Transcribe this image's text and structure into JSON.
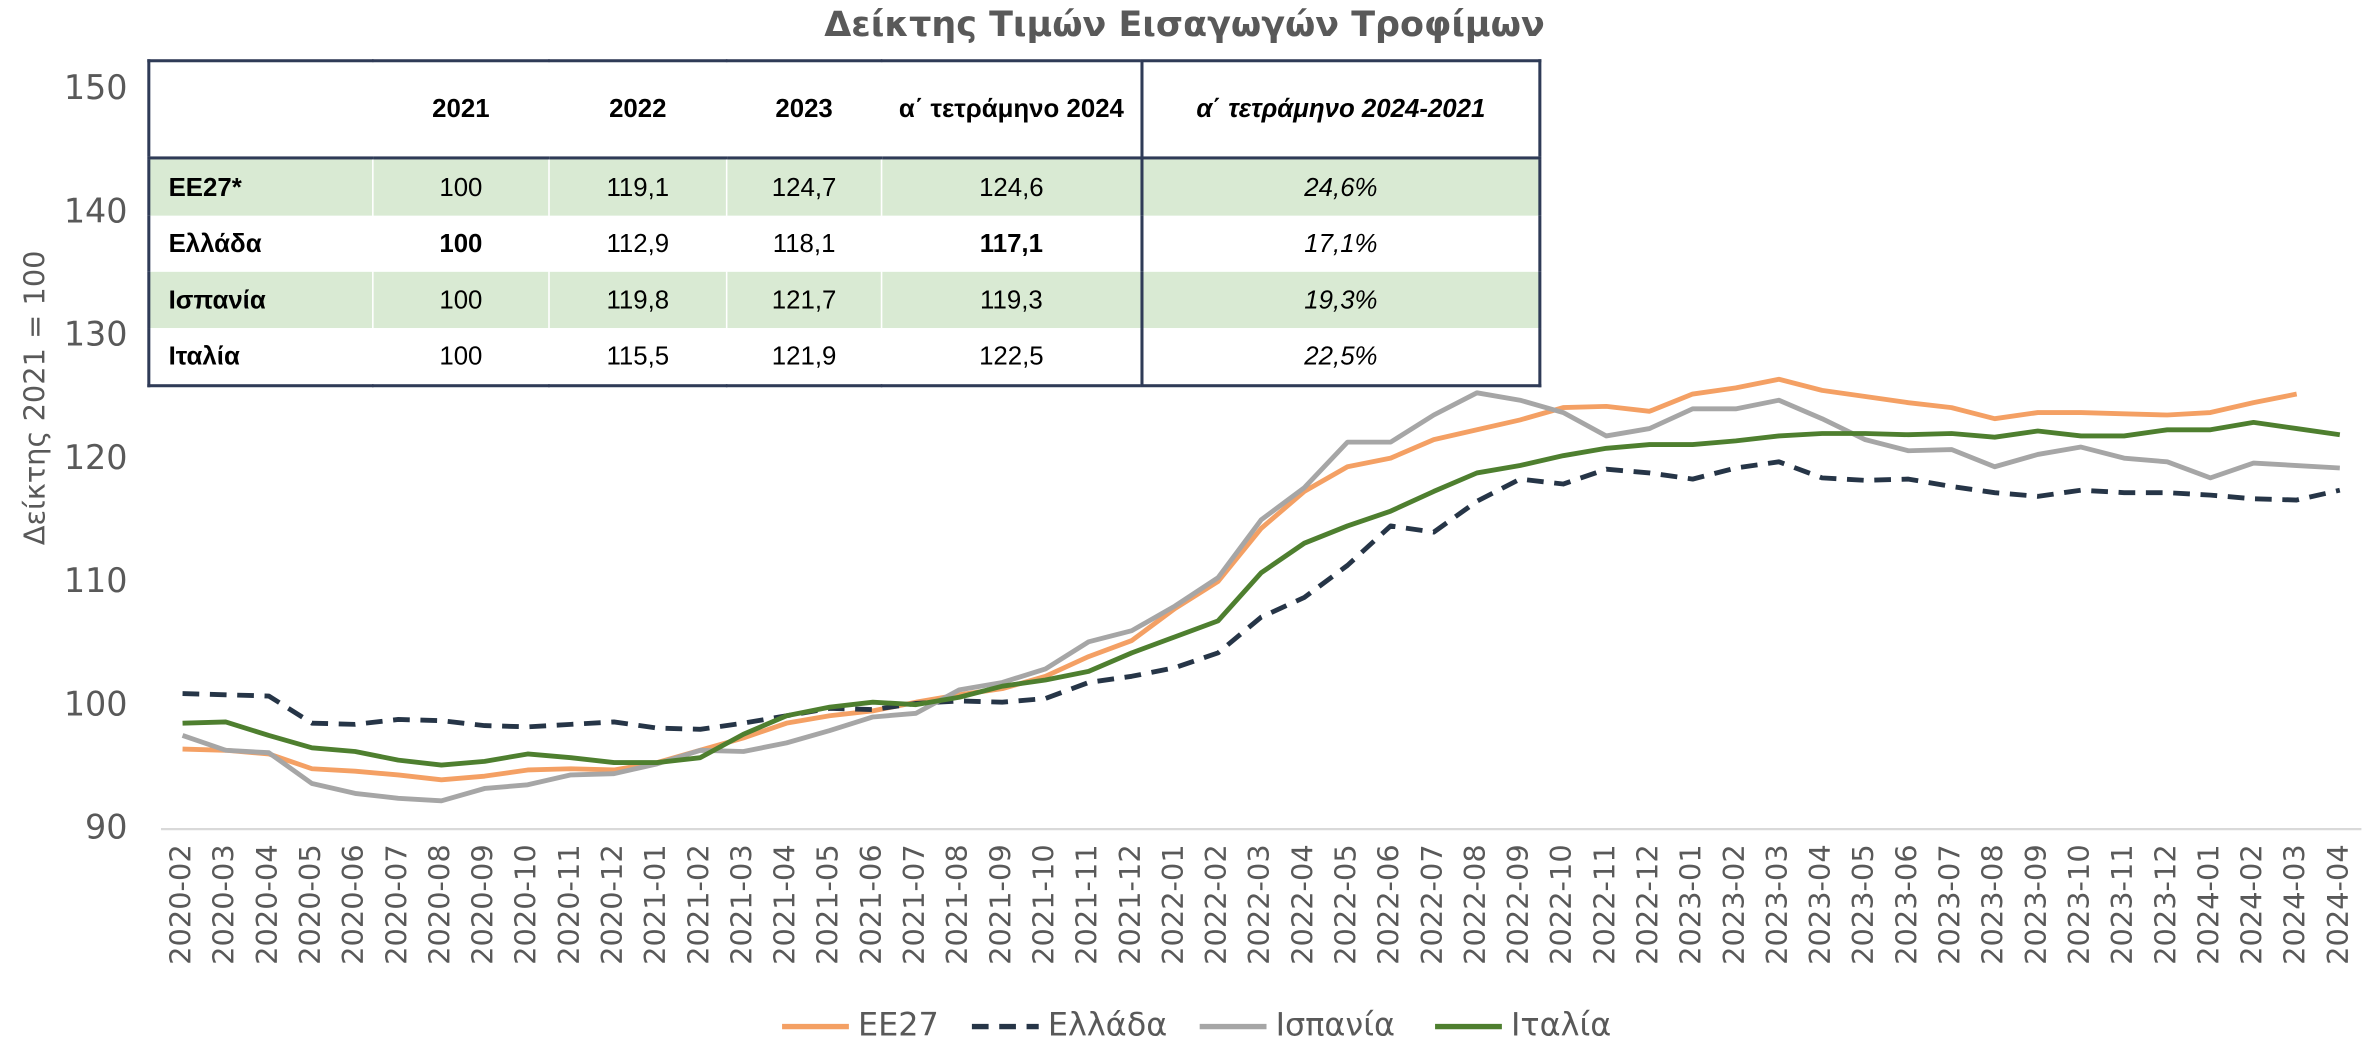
{
  "chart_data": {
    "type": "line",
    "title": "Δείκτης Τιμών Εισαγωγών Τροφίμων",
    "y_label": "Δείκτης 2021 = 100",
    "categories": [
      "2020-02",
      "2020-03",
      "2020-04",
      "2020-05",
      "2020-06",
      "2020-07",
      "2020-08",
      "2020-09",
      "2020-10",
      "2020-11",
      "2020-12",
      "2021-01",
      "2021-02",
      "2021-03",
      "2021-04",
      "2021-05",
      "2021-06",
      "2021-07",
      "2021-08",
      "2021-09",
      "2021-10",
      "2021-11",
      "2021-12",
      "2022-01",
      "2022-02",
      "2022-03",
      "2022-04",
      "2022-05",
      "2022-06",
      "2022-07",
      "2022-08",
      "2022-09",
      "2022-10",
      "2022-11",
      "2022-12",
      "2023-01",
      "2023-02",
      "2023-03",
      "2023-04",
      "2023-05",
      "2023-06",
      "2023-07",
      "2023-08",
      "2023-09",
      "2023-10",
      "2023-11",
      "2023-12",
      "2024-01",
      "2024-02",
      "2024-03",
      "2024-04"
    ],
    "ylim": [
      90,
      150
    ],
    "yticks": [
      90,
      100,
      110,
      120,
      130,
      140,
      150
    ],
    "grid": false,
    "series": [
      {
        "name": "ΕΕ27",
        "color": "#f4a064",
        "dash": false,
        "values": [
          96.5,
          96.4,
          96.1,
          94.9,
          94.7,
          94.4,
          94.0,
          94.3,
          94.8,
          94.9,
          94.8,
          95.4,
          96.4,
          97.4,
          98.6,
          99.2,
          99.6,
          100.3,
          100.9,
          101.4,
          102.4,
          104.0,
          105.3,
          107.9,
          110.1,
          114.4,
          117.4,
          119.4,
          120.1,
          121.6,
          122.4,
          123.2,
          124.2,
          124.3,
          123.9,
          125.3,
          125.8,
          126.5,
          125.6,
          125.1,
          124.6,
          124.2,
          123.3,
          123.8,
          123.8,
          123.7,
          123.6,
          123.8,
          124.6,
          125.3,
          null
        ]
      },
      {
        "name": "Ελλάδα",
        "color": "#263547",
        "dash": true,
        "values": [
          101.0,
          100.9,
          100.8,
          98.6,
          98.5,
          98.9,
          98.8,
          98.4,
          98.3,
          98.5,
          98.7,
          98.2,
          98.1,
          98.6,
          99.2,
          99.8,
          99.7,
          100.2,
          100.4,
          100.3,
          100.6,
          101.9,
          102.4,
          103.1,
          104.3,
          107.2,
          108.8,
          111.4,
          114.6,
          114.1,
          116.6,
          118.4,
          118.0,
          119.2,
          118.9,
          118.4,
          119.3,
          119.8,
          118.5,
          118.3,
          118.4,
          117.8,
          117.3,
          117.0,
          117.5,
          117.3,
          117.3,
          117.1,
          116.8,
          116.7,
          117.5
        ]
      },
      {
        "name": "Ισπανία",
        "color": "#a6a6a6",
        "dash": false,
        "values": [
          97.6,
          96.4,
          96.2,
          93.7,
          92.9,
          92.5,
          92.3,
          93.3,
          93.6,
          94.4,
          94.5,
          95.3,
          96.4,
          96.3,
          97.0,
          98.0,
          99.1,
          99.4,
          101.3,
          101.9,
          103.0,
          105.2,
          106.1,
          108.1,
          110.4,
          115.1,
          117.7,
          121.4,
          121.4,
          123.6,
          125.4,
          124.8,
          123.8,
          121.9,
          122.5,
          124.1,
          124.1,
          124.8,
          123.3,
          121.6,
          120.7,
          120.8,
          119.4,
          120.4,
          121.0,
          120.1,
          119.8,
          118.5,
          119.7,
          119.5,
          119.3
        ]
      },
      {
        "name": "Ιταλία",
        "color": "#4e7f2f",
        "dash": false,
        "values": [
          98.6,
          98.7,
          97.6,
          96.6,
          96.3,
          95.6,
          95.2,
          95.5,
          96.1,
          95.8,
          95.4,
          95.4,
          95.8,
          97.7,
          99.2,
          99.9,
          100.3,
          100.1,
          100.7,
          101.6,
          102.1,
          102.8,
          104.3,
          105.6,
          106.9,
          110.8,
          113.2,
          114.6,
          115.8,
          117.4,
          118.9,
          119.5,
          120.3,
          120.9,
          121.2,
          121.2,
          121.5,
          121.9,
          122.1,
          122.1,
          122.0,
          122.1,
          121.8,
          122.3,
          121.9,
          121.9,
          122.4,
          122.4,
          123.0,
          122.5,
          122.0
        ]
      }
    ]
  },
  "table": {
    "header": [
      "2021",
      "2022",
      "2023",
      "α΄ τετράμηνο 2024",
      "α΄ τετράμηνο 2024-2021"
    ],
    "rows": [
      [
        "ΕΕ27*",
        "100",
        "119,1",
        "124,7",
        "124,6",
        "24,6%"
      ],
      [
        "Ελλάδα",
        "100",
        "112,9",
        "118,1",
        "117,1",
        "17,1%"
      ],
      [
        "Ισπανία",
        "100",
        "119,8",
        "121,7",
        "119,3",
        "19,3%"
      ],
      [
        "Ιταλία",
        "100",
        "115,5",
        "121,9",
        "122,5",
        "22,5%"
      ]
    ]
  }
}
